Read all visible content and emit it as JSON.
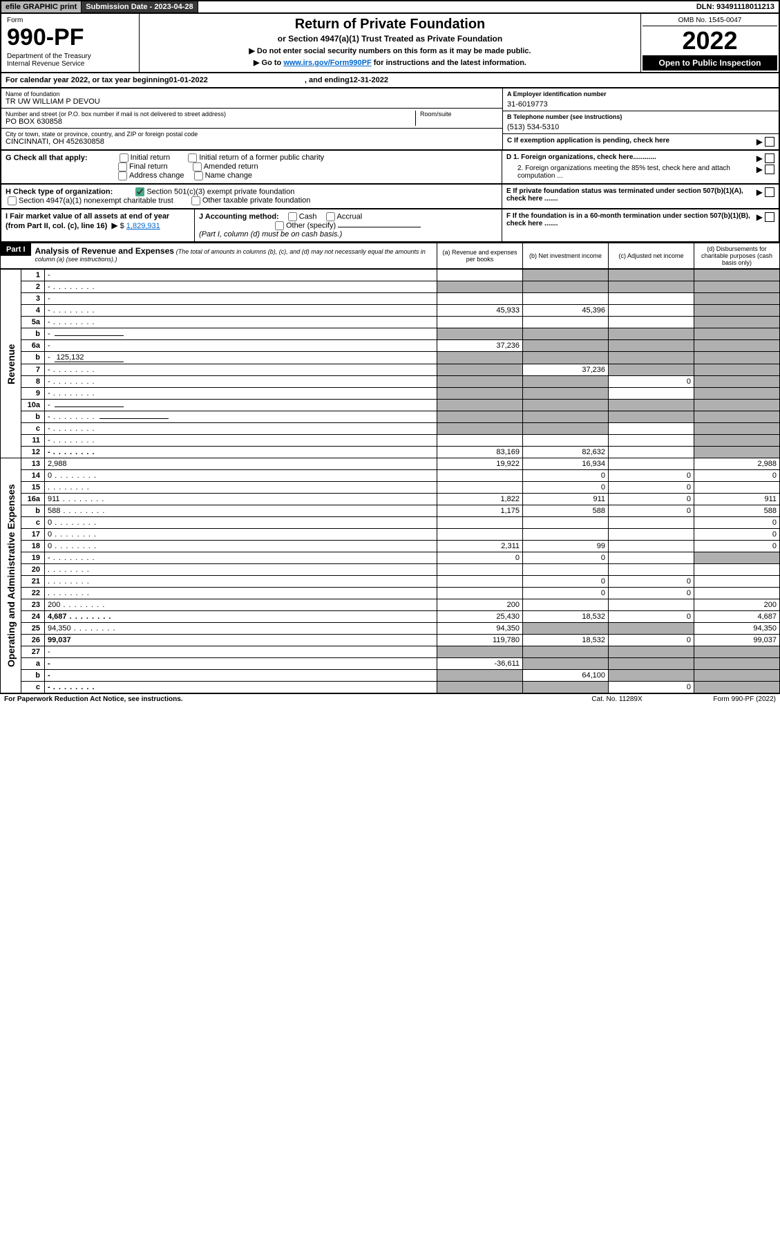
{
  "top_bar": {
    "efile": "efile GRAPHIC print",
    "sub_label": "Submission Date - 2023-04-28",
    "dln": "DLN: 93491118011213"
  },
  "header": {
    "form_label": "Form",
    "form_no": "990-PF",
    "dept": "Department of the Treasury\nInternal Revenue Service",
    "title": "Return of Private Foundation",
    "subtitle": "or Section 4947(a)(1) Trust Treated as Private Foundation",
    "inst1": "▶ Do not enter social security numbers on this form as it may be made public.",
    "inst2_pre": "▶ Go to ",
    "inst2_link": "www.irs.gov/Form990PF",
    "inst2_post": " for instructions and the latest information.",
    "omb": "OMB No. 1545-0047",
    "year": "2022",
    "open": "Open to Public Inspection"
  },
  "cal_year": {
    "text_pre": "For calendar year 2022, or tax year beginning ",
    "begin": "01-01-2022",
    "mid": ", and ending ",
    "end": "12-31-2022"
  },
  "foundation": {
    "name_label": "Name of foundation",
    "name": "TR UW WILLIAM P DEVOU",
    "addr_label": "Number and street (or P.O. box number if mail is not delivered to street address)",
    "addr": "PO BOX 630858",
    "room_label": "Room/suite",
    "city_label": "City or town, state or province, country, and ZIP or foreign postal code",
    "city": "CINCINNATI, OH  452630858"
  },
  "ein": {
    "label": "A Employer identification number",
    "value": "31-6019773"
  },
  "phone": {
    "label": "B Telephone number (see instructions)",
    "value": "(513) 534-5310"
  },
  "c_label": "C If exemption application is pending, check here",
  "d1": "D 1. Foreign organizations, check here............",
  "d2": "2. Foreign organizations meeting the 85% test, check here and attach computation ...",
  "e_label": "E  If private foundation status was terminated under section 507(b)(1)(A), check here .......",
  "f_label": "F  If the foundation is in a 60-month termination under section 507(b)(1)(B), check here .......",
  "g": {
    "label": "G Check all that apply:",
    "opts": [
      "Initial return",
      "Initial return of a former public charity",
      "Final return",
      "Amended return",
      "Address change",
      "Name change"
    ]
  },
  "h": {
    "label": "H Check type of organization:",
    "opt1": "Section 501(c)(3) exempt private foundation",
    "opt2": "Section 4947(a)(1) nonexempt charitable trust",
    "opt3": "Other taxable private foundation"
  },
  "i": {
    "label": "I Fair market value of all assets at end of year (from Part II, col. (c), line 16)",
    "value": "1,829,931"
  },
  "j": {
    "label": "J Accounting method:",
    "cash": "Cash",
    "accrual": "Accrual",
    "other": "Other (specify)",
    "note": "(Part I, column (d) must be on cash basis.)"
  },
  "part1": {
    "label": "Part I",
    "title": "Analysis of Revenue and Expenses",
    "note": "(The total of amounts in columns (b), (c), and (d) may not necessarily equal the amounts in column (a) (see instructions).)",
    "cols": {
      "a": "(a)  Revenue and expenses per books",
      "b": "(b)  Net investment income",
      "c": "(c)  Adjusted net income",
      "d": "(d)  Disbursements for charitable purposes (cash basis only)"
    }
  },
  "side_labels": {
    "revenue": "Revenue",
    "expenses": "Operating and Administrative Expenses"
  },
  "rows": [
    {
      "n": "1",
      "d": "-",
      "a": "",
      "b": "-",
      "c": "-"
    },
    {
      "n": "2",
      "d": "-",
      "a": "-",
      "b": "-",
      "c": "-",
      "dots": true
    },
    {
      "n": "3",
      "d": "-",
      "a": "",
      "b": "",
      "c": ""
    },
    {
      "n": "4",
      "d": "-",
      "a": "45,933",
      "b": "45,396",
      "c": "",
      "dots": true
    },
    {
      "n": "5a",
      "d": "-",
      "a": "",
      "b": "",
      "c": "",
      "dots": true
    },
    {
      "n": "b",
      "d": "-",
      "a": "-",
      "b": "-",
      "c": "-",
      "inline": true
    },
    {
      "n": "6a",
      "d": "-",
      "a": "37,236",
      "b": "-",
      "c": "-"
    },
    {
      "n": "b",
      "d": "-",
      "a": "-",
      "b": "-",
      "c": "-",
      "inline": true,
      "inlineval": "125,132"
    },
    {
      "n": "7",
      "d": "-",
      "a": "-",
      "b": "37,236",
      "c": "-",
      "dots": true
    },
    {
      "n": "8",
      "d": "-",
      "a": "-",
      "b": "-",
      "c": "0",
      "dots": true
    },
    {
      "n": "9",
      "d": "-",
      "a": "-",
      "b": "-",
      "c": "",
      "dots": true
    },
    {
      "n": "10a",
      "d": "-",
      "a": "-",
      "b": "-",
      "c": "-",
      "inline": true
    },
    {
      "n": "b",
      "d": "-",
      "a": "-",
      "b": "-",
      "c": "-",
      "inline": true,
      "dots": true
    },
    {
      "n": "c",
      "d": "-",
      "a": "-",
      "b": "-",
      "c": "",
      "dots": true
    },
    {
      "n": "11",
      "d": "-",
      "a": "",
      "b": "",
      "c": "",
      "dots": true
    },
    {
      "n": "12",
      "d": "-",
      "a": "83,169",
      "b": "82,632",
      "c": "",
      "bold": true,
      "dots": true
    },
    {
      "n": "13",
      "d": "2,988",
      "a": "19,922",
      "b": "16,934",
      "c": ""
    },
    {
      "n": "14",
      "d": "0",
      "a": "",
      "b": "0",
      "c": "0",
      "dots": true
    },
    {
      "n": "15",
      "d": "",
      "a": "",
      "b": "0",
      "c": "0",
      "dots": true
    },
    {
      "n": "16a",
      "d": "911",
      "a": "1,822",
      "b": "911",
      "c": "0",
      "dots": true
    },
    {
      "n": "b",
      "d": "588",
      "a": "1,175",
      "b": "588",
      "c": "0",
      "dots": true
    },
    {
      "n": "c",
      "d": "0",
      "a": "",
      "b": "",
      "c": "",
      "dots": true
    },
    {
      "n": "17",
      "d": "0",
      "a": "",
      "b": "",
      "c": "",
      "dots": true
    },
    {
      "n": "18",
      "d": "0",
      "a": "2,311",
      "b": "99",
      "c": "",
      "dots": true
    },
    {
      "n": "19",
      "d": "-",
      "a": "0",
      "b": "0",
      "c": "",
      "dots": true
    },
    {
      "n": "20",
      "d": "",
      "a": "",
      "b": "",
      "c": "",
      "dots": true
    },
    {
      "n": "21",
      "d": "",
      "a": "",
      "b": "0",
      "c": "0",
      "dots": true
    },
    {
      "n": "22",
      "d": "",
      "a": "",
      "b": "0",
      "c": "0",
      "dots": true
    },
    {
      "n": "23",
      "d": "200",
      "a": "200",
      "b": "",
      "c": "",
      "dots": true
    },
    {
      "n": "24",
      "d": "4,687",
      "a": "25,430",
      "b": "18,532",
      "c": "0",
      "bold": true,
      "dots": true
    },
    {
      "n": "25",
      "d": "94,350",
      "a": "94,350",
      "b": "-",
      "c": "-",
      "dots": true
    },
    {
      "n": "26",
      "d": "99,037",
      "a": "119,780",
      "b": "18,532",
      "c": "0",
      "bold": true
    },
    {
      "n": "27",
      "d": "-",
      "a": "-",
      "b": "-",
      "c": "-"
    },
    {
      "n": "a",
      "d": "-",
      "a": "-36,611",
      "b": "-",
      "c": "-",
      "bold": true
    },
    {
      "n": "b",
      "d": "-",
      "a": "-",
      "b": "64,100",
      "c": "-",
      "bold": true
    },
    {
      "n": "c",
      "d": "-",
      "a": "-",
      "b": "-",
      "c": "0",
      "bold": true,
      "dots": true
    }
  ],
  "footer": {
    "left": "For Paperwork Reduction Act Notice, see instructions.",
    "mid": "Cat. No. 11289X",
    "right": "Form 990-PF (2022)"
  },
  "colors": {
    "shaded": "#b0b0b0",
    "header_bg": "#000000",
    "link": "#0066cc"
  }
}
